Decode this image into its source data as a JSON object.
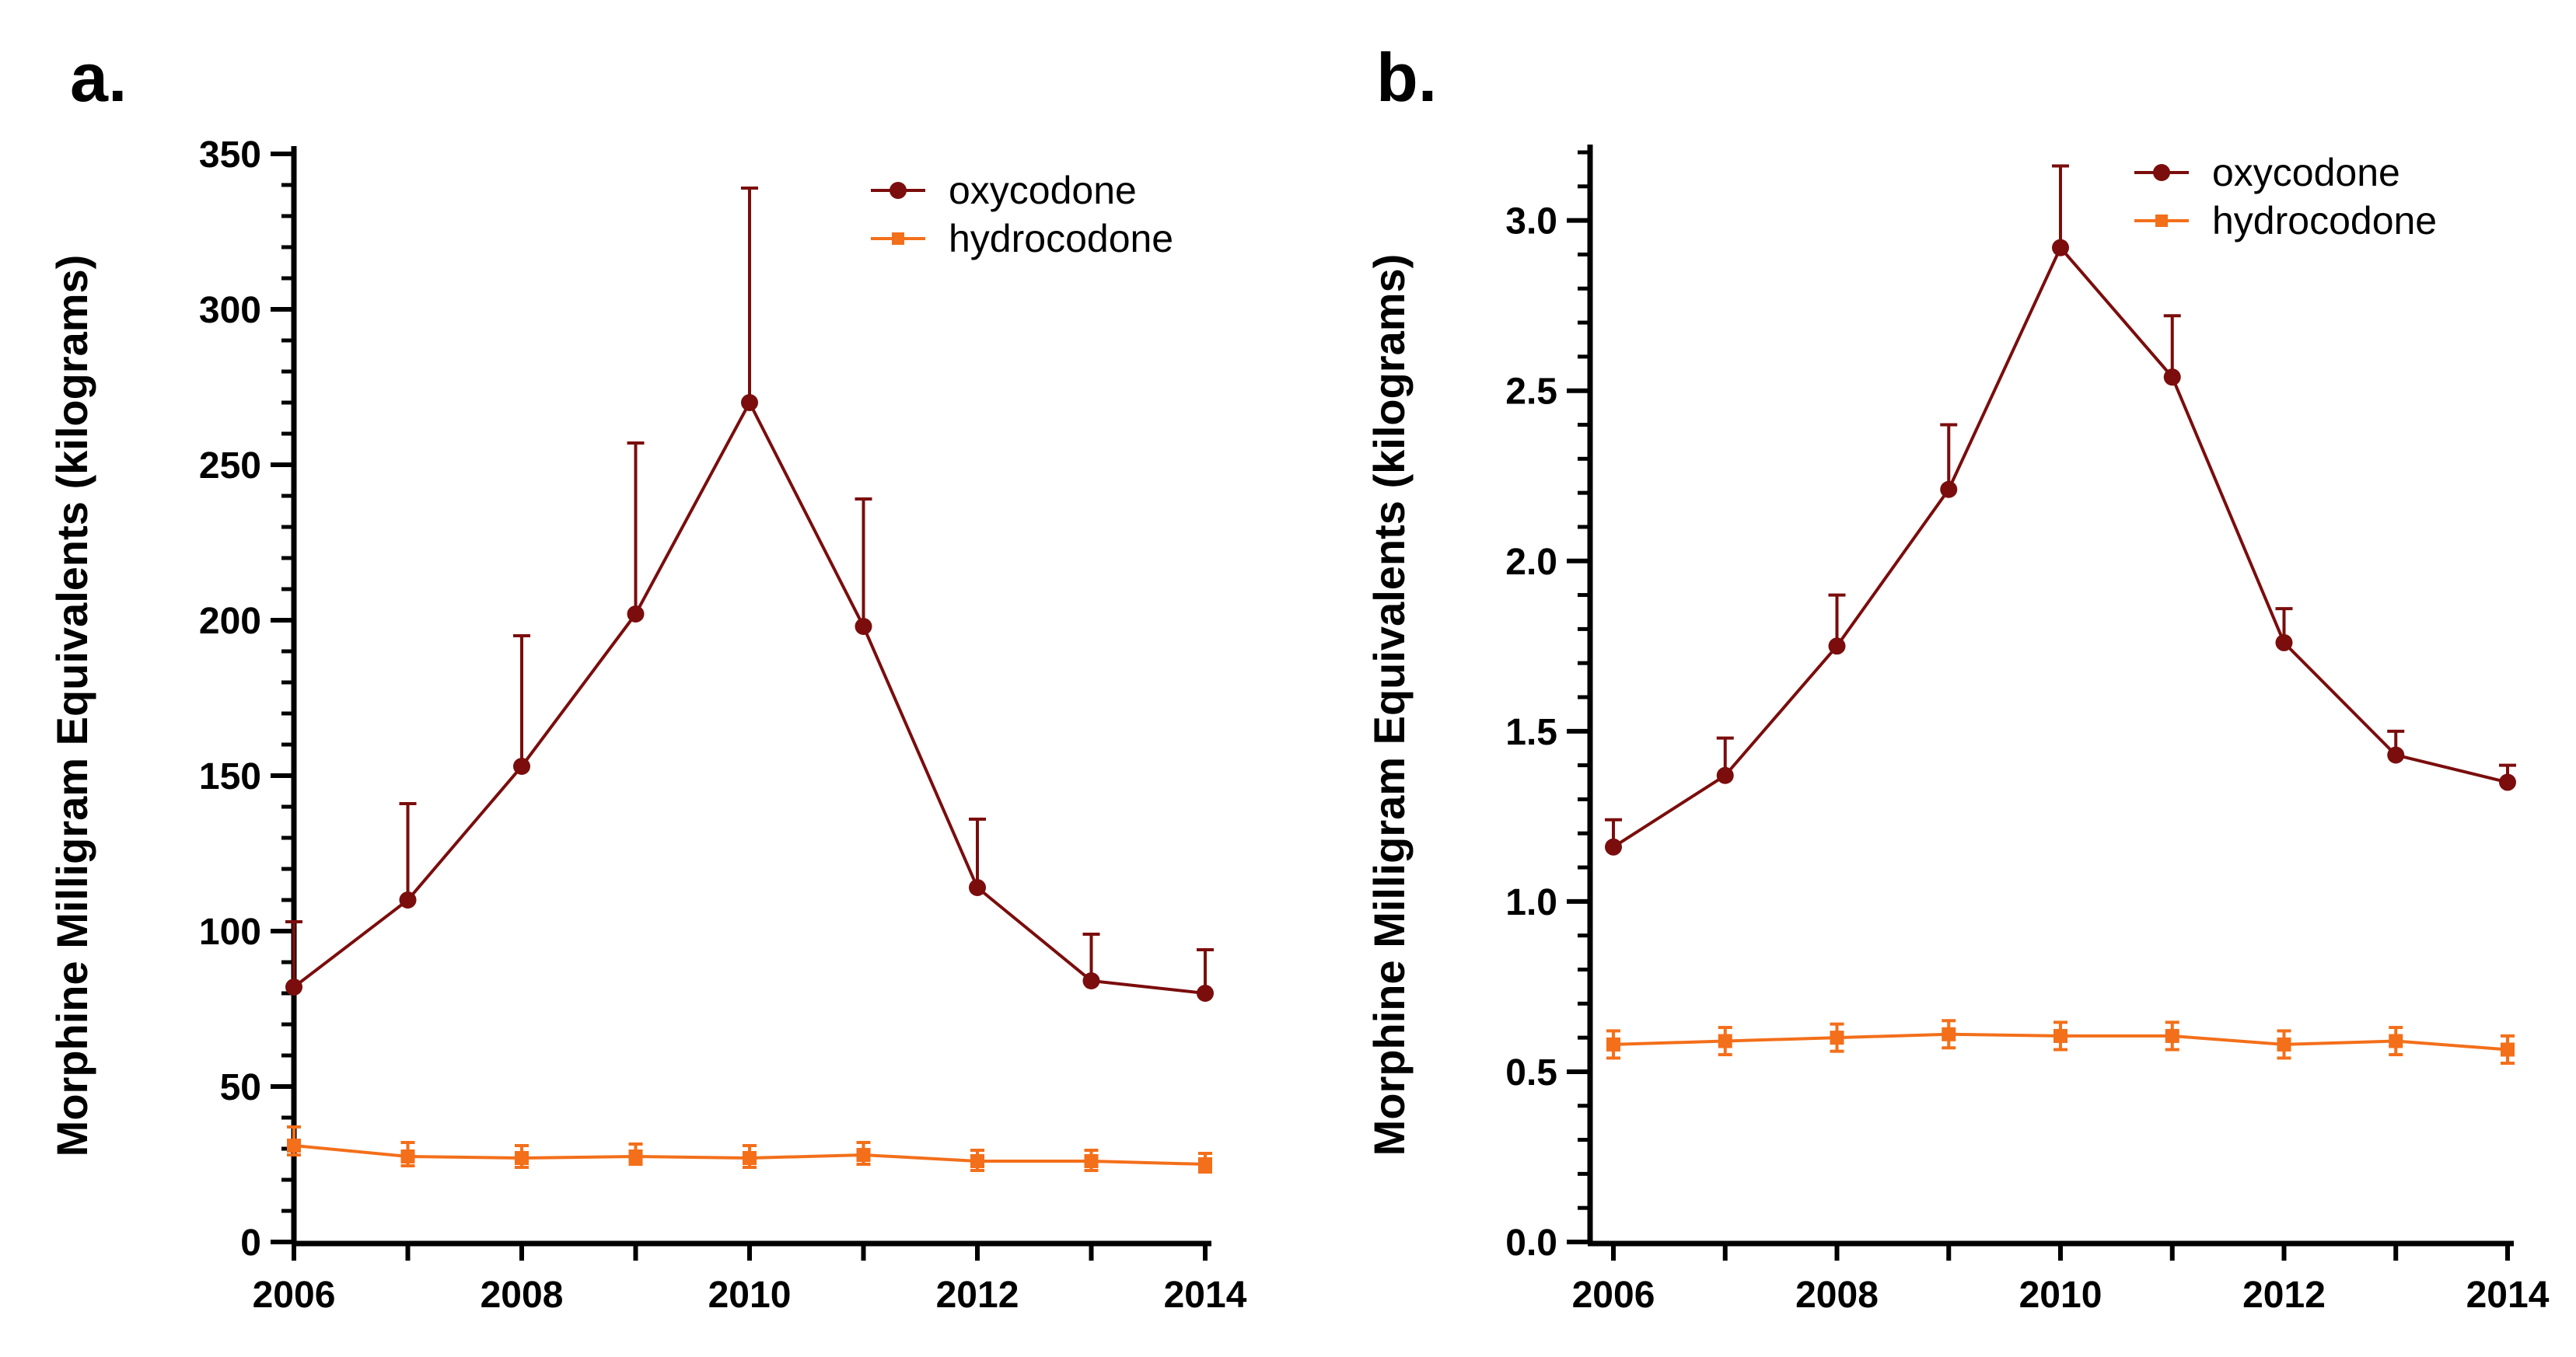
{
  "colors": {
    "oxycodone": "#7b0d0d",
    "hydrocodone": "#f36f1a",
    "axis": "#000000"
  },
  "chart_data": [
    {
      "panel": "a.",
      "type": "line",
      "ylabel": "Morphine Milligram Equivalents (kilograms)",
      "xlabel": "",
      "x": [
        2006,
        2007,
        2008,
        2009,
        2010,
        2011,
        2012,
        2013,
        2014
      ],
      "xticks": [
        "2006",
        "2008",
        "2010",
        "2012",
        "2014"
      ],
      "xlim": [
        2006,
        2014
      ],
      "ylim": [
        0,
        350
      ],
      "yticks": [
        "0",
        "50",
        "100",
        "150",
        "200",
        "250",
        "300",
        "350"
      ],
      "yminor_step": 10,
      "legend": [
        "oxycodone",
        "hydrocodone"
      ],
      "legend_position": "top-right",
      "series": [
        {
          "name": "oxycodone",
          "marker": "circle",
          "values": [
            82,
            110,
            153,
            202,
            270,
            198,
            114,
            84,
            80
          ],
          "error_upper": [
            103,
            141,
            195,
            257,
            339,
            239,
            136,
            99,
            94
          ]
        },
        {
          "name": "hydrocodone",
          "marker": "square",
          "values": [
            31,
            27.5,
            27,
            27.5,
            27,
            28,
            26,
            26,
            25
          ],
          "error_upper": [
            37,
            32,
            31,
            31.5,
            31,
            32,
            29.5,
            29.5,
            28.5
          ],
          "error_lower": [
            28,
            24.5,
            24,
            25,
            24,
            25,
            23,
            23,
            22.5
          ]
        }
      ]
    },
    {
      "panel": "b.",
      "type": "line",
      "ylabel": "Morphine Milligram Equivalents (kilograms)",
      "xlabel": "",
      "x": [
        2006,
        2007,
        2008,
        2009,
        2010,
        2011,
        2012,
        2013,
        2014
      ],
      "xticks": [
        "2006",
        "2008",
        "2010",
        "2012",
        "2014"
      ],
      "xlim": [
        2006,
        2014
      ],
      "ylim": [
        0,
        3.2
      ],
      "yticks": [
        "0.0",
        "0.5",
        "1.0",
        "1.5",
        "2.0",
        "2.5",
        "3.0"
      ],
      "yminor_step": 0.1,
      "legend": [
        "oxycodone",
        "hydrocodone"
      ],
      "legend_position": "top-right",
      "series": [
        {
          "name": "oxycodone",
          "marker": "circle",
          "values": [
            1.16,
            1.37,
            1.75,
            2.21,
            2.92,
            2.54,
            1.76,
            1.43,
            1.35
          ],
          "error_upper": [
            1.24,
            1.48,
            1.9,
            2.4,
            3.16,
            2.72,
            1.86,
            1.5,
            1.4
          ]
        },
        {
          "name": "hydrocodone",
          "marker": "square",
          "values": [
            0.58,
            0.59,
            0.6,
            0.61,
            0.605,
            0.605,
            0.58,
            0.59,
            0.565
          ],
          "error_upper": [
            0.62,
            0.63,
            0.64,
            0.65,
            0.645,
            0.645,
            0.62,
            0.63,
            0.605
          ],
          "error_lower": [
            0.54,
            0.55,
            0.56,
            0.57,
            0.565,
            0.565,
            0.54,
            0.55,
            0.525
          ]
        }
      ]
    }
  ]
}
